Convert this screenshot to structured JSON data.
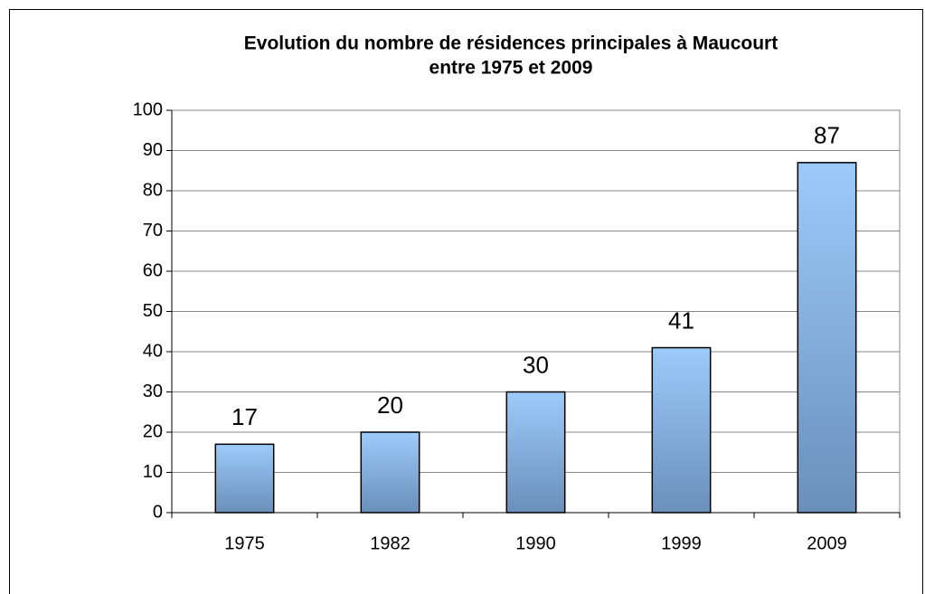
{
  "chart_data": {
    "type": "bar",
    "title": [
      "Evolution du nombre de résidences principales à Maucourt",
      "entre 1975 et 2009"
    ],
    "categories": [
      "1975",
      "1982",
      "1990",
      "1999",
      "2009"
    ],
    "values": [
      17,
      20,
      30,
      41,
      87
    ],
    "color": "#9ccbfa",
    "ylim": [
      0,
      100
    ],
    "yticks": [
      0,
      10,
      20,
      30,
      40,
      50,
      60,
      70,
      80,
      90,
      100
    ],
    "grid": true
  }
}
